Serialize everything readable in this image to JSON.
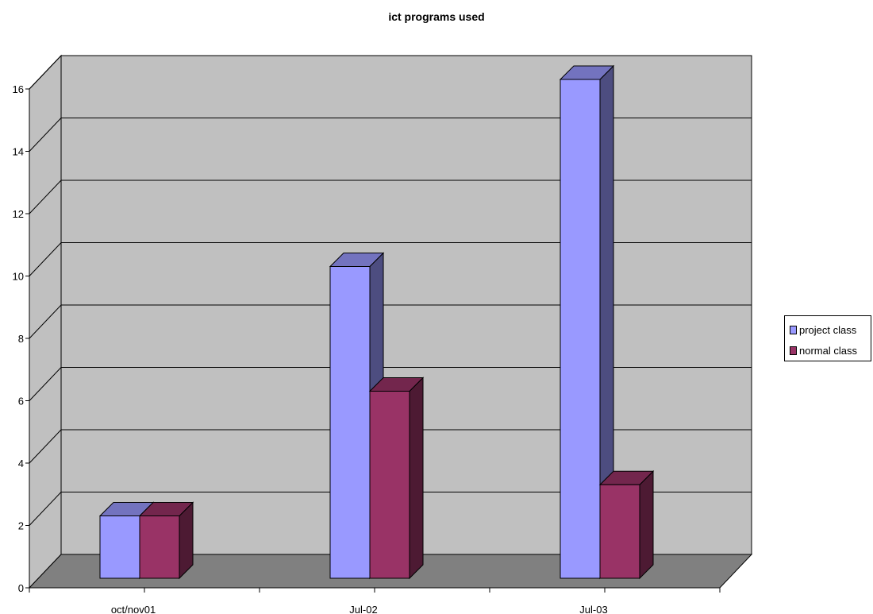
{
  "chart_data": {
    "type": "bar",
    "title": "ict programs used",
    "categories": [
      "oct/nov01",
      "Jul-02",
      "Jul-03"
    ],
    "series": [
      {
        "name": "project class",
        "values": [
          2,
          10,
          16
        ],
        "color": "#9999ff",
        "side_color": "#4d4d80",
        "top_color": "#7373bf"
      },
      {
        "name": "normal class",
        "values": [
          2,
          6,
          3
        ],
        "color": "#993366",
        "side_color": "#4d1a33",
        "top_color": "#73264d"
      }
    ],
    "ylim": [
      0,
      16
    ],
    "yticks": [
      0,
      2,
      4,
      6,
      8,
      10,
      12,
      14,
      16
    ],
    "xlabel": "",
    "ylabel": "",
    "grid": true,
    "legend_position": "right",
    "wall_color": "#c0c0c0",
    "floor_color": "#808080"
  }
}
